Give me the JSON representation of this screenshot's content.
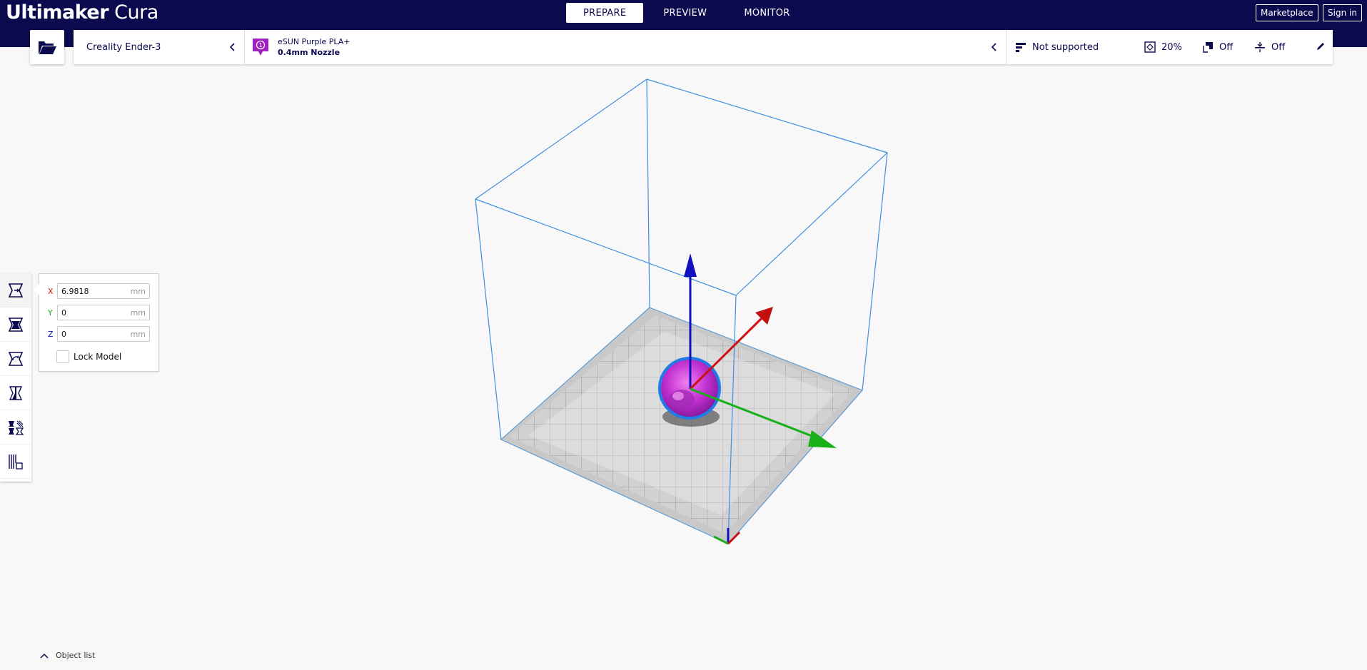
{
  "app": {
    "logo_brand": "Ultimaker",
    "logo_product": "Cura",
    "background_color": "#f8f8f8",
    "header_color": "#0c0a4f"
  },
  "stages": [
    {
      "label": "PREPARE",
      "active": true
    },
    {
      "label": "PREVIEW",
      "active": false
    },
    {
      "label": "MONITOR",
      "active": false
    }
  ],
  "header_buttons": {
    "marketplace": "Marketplace",
    "sign_in": "Sign in"
  },
  "printer": {
    "name": "Creality Ender-3"
  },
  "material": {
    "extruder_number": "1",
    "name": "eSUN Purple PLA+",
    "nozzle": "0.4mm Nozzle",
    "color": "#a020c0"
  },
  "print_settings": {
    "support": "Not supported",
    "infill": "20%",
    "adhesion": "Off",
    "support_toggle": "Off"
  },
  "move_tool": {
    "x_label": "X",
    "x_value": "6.9818",
    "y_label": "Y",
    "y_value": "0",
    "z_label": "Z",
    "z_value": "0",
    "unit": "mm",
    "lock_label": "Lock Model",
    "lock_checked": false
  },
  "tools": [
    {
      "name": "move-tool",
      "icon": "move-icon"
    },
    {
      "name": "scale-tool",
      "icon": "scale-icon"
    },
    {
      "name": "rotate-tool",
      "icon": "rotate-icon"
    },
    {
      "name": "mirror-tool",
      "icon": "mirror-icon"
    },
    {
      "name": "per-model-settings-tool",
      "icon": "per-model-settings-icon"
    },
    {
      "name": "support-blocker-tool",
      "icon": "support-blocker-icon"
    }
  ],
  "axis_colors": {
    "x": "#d01010",
    "y": "#18b018",
    "z": "#1010c0"
  },
  "object_list_label": "Object list"
}
